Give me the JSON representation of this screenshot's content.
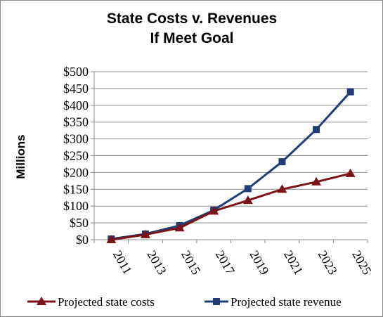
{
  "chart_data": {
    "type": "line",
    "title_lines": [
      "State Costs v. Revenues",
      "If Meet Goal"
    ],
    "ylabel": "Millions",
    "xlabel": "",
    "categories": [
      "2011",
      "2013",
      "2015",
      "2017",
      "2019",
      "2021",
      "2023",
      "2025"
    ],
    "ylim": [
      0,
      500
    ],
    "yticks": [
      "$0",
      "$50",
      "$100",
      "$150",
      "$200",
      "$250",
      "$300",
      "$350",
      "$400",
      "$450",
      "$500"
    ],
    "grid": true,
    "legend_position": "bottom",
    "series": [
      {
        "name": "Projected state costs",
        "color": "#7b1418",
        "marker": "triangle",
        "values": [
          0,
          15,
          35,
          85,
          117,
          150,
          172,
          197
        ]
      },
      {
        "name": "Projected state revenue",
        "color": "#203d78",
        "marker": "square",
        "values": [
          2,
          17,
          42,
          88,
          152,
          232,
          328,
          440
        ]
      }
    ]
  }
}
